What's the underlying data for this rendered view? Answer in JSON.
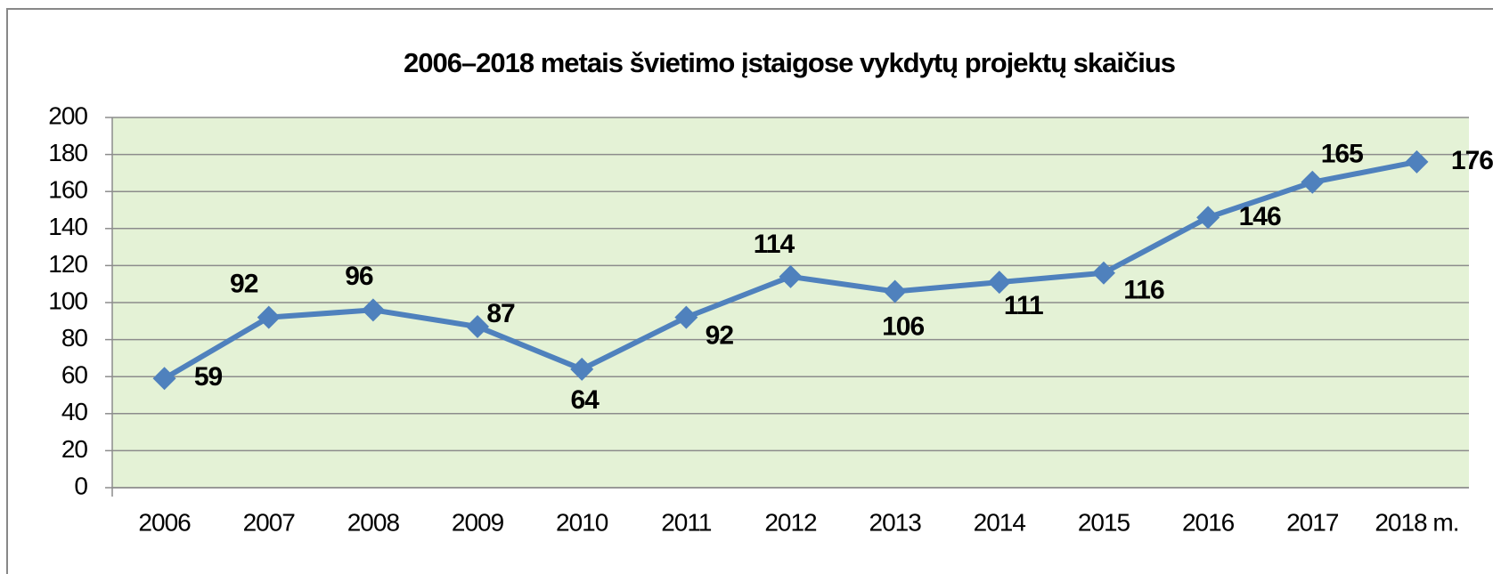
{
  "chart_data": {
    "type": "line",
    "title": "2006–2018 metais švietimo įstaigose vykdytų projektų skaičius",
    "categories": [
      "2006",
      "2007",
      "2008",
      "2009",
      "2010",
      "2011",
      "2012",
      "2013",
      "2014",
      "2015",
      "2016",
      "2017",
      "2018 m."
    ],
    "series": [
      {
        "color": "#4f81bd",
        "values": [
          59,
          92,
          96,
          87,
          64,
          92,
          114,
          106,
          111,
          116,
          146,
          165,
          176
        ]
      }
    ],
    "ylim": [
      0,
      200
    ],
    "yticks": [
      0,
      20,
      40,
      60,
      80,
      100,
      120,
      140,
      160,
      180,
      200
    ],
    "grid": true,
    "plot_background": "#e4f2d6"
  }
}
